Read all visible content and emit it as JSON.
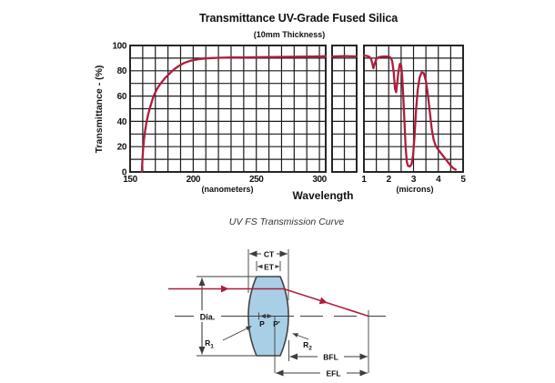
{
  "chart": {
    "title": "Transmittance UV-Grade Fused Silica",
    "subtitle": "(10mm Thickness)",
    "ylabel": "Transmittance - (%)",
    "xlabel": "Wavelength",
    "nm_axis_unit": "(nanometers)",
    "um_axis_unit": "(microns)"
  },
  "caption": "UV FS Transmission Curve",
  "lens": {
    "ct": "CT",
    "et": "ET",
    "dia": "Dia.",
    "p": "P",
    "p_prime": "P'",
    "r1": "R",
    "r1_sub": "1",
    "r2": "R",
    "r2_sub": "2",
    "bfl": "BFL",
    "efl": "EFL"
  },
  "colors": {
    "curve": "#AD1E3C",
    "ray": "#AD1E3C",
    "grid": "#1c1c1c",
    "diagram": "#3d3d3d",
    "lens_fill": "#A9CFE7",
    "lens_outline": "#444444",
    "text": "#111111"
  },
  "chart_data": {
    "type": "line",
    "title": "Transmittance UV-Grade Fused Silica",
    "subtitle": "(10mm Thickness)",
    "xlabel": "Wavelength",
    "ylabel": "Transmittance - (%)",
    "ylim": [
      0,
      100
    ],
    "y_ticks": [
      0,
      20,
      40,
      60,
      80,
      100
    ],
    "y_grid_step": 10,
    "grid": true,
    "legend": false,
    "panels": [
      {
        "id": "nm",
        "unit": "nanometers",
        "x_range": [
          150,
          305
        ],
        "grid_step": 10,
        "ticks": [
          150,
          200,
          250,
          300
        ],
        "points": [
          [
            159.3,
            0
          ],
          [
            159.8,
            10
          ],
          [
            160.3,
            18
          ],
          [
            161,
            26
          ],
          [
            162,
            33
          ],
          [
            163,
            39
          ],
          [
            164,
            44
          ],
          [
            165.5,
            50
          ],
          [
            167,
            55
          ],
          [
            168.6,
            60
          ],
          [
            170.5,
            64
          ],
          [
            172.5,
            67.5
          ],
          [
            175,
            71
          ],
          [
            177.5,
            74
          ],
          [
            180,
            76.5
          ],
          [
            183,
            79.5
          ],
          [
            186,
            82
          ],
          [
            189,
            84
          ],
          [
            192,
            85.8
          ],
          [
            195,
            87
          ],
          [
            198,
            88
          ],
          [
            202,
            88.8
          ],
          [
            206,
            89.4
          ],
          [
            210,
            89.8
          ],
          [
            215,
            90.1
          ],
          [
            220,
            90.3
          ],
          [
            230,
            90.5
          ],
          [
            240,
            90.6
          ],
          [
            250,
            90.7
          ],
          [
            265,
            90.9
          ],
          [
            280,
            91.1
          ],
          [
            295,
            91.3
          ],
          [
            305,
            91.5
          ]
        ]
      },
      {
        "id": "brk",
        "unit": "axis-break",
        "x_range": [
          0,
          2
        ],
        "grid_step": 1,
        "ticks": [],
        "points": [
          [
            0,
            91.2
          ],
          [
            1,
            91.6
          ],
          [
            2,
            91.4
          ]
        ]
      },
      {
        "id": "um",
        "unit": "microns",
        "x_range": [
          1,
          5
        ],
        "grid_step": 0.5,
        "ticks": [
          1,
          2,
          3,
          4,
          5
        ],
        "points": [
          [
            1.0,
            92
          ],
          [
            1.1,
            91.8
          ],
          [
            1.2,
            91.3
          ],
          [
            1.28,
            89.8
          ],
          [
            1.33,
            86.5
          ],
          [
            1.38,
            82
          ],
          [
            1.44,
            86
          ],
          [
            1.5,
            89.5
          ],
          [
            1.6,
            90.8
          ],
          [
            1.75,
            91.2
          ],
          [
            1.9,
            91.3
          ],
          [
            2.0,
            91.2
          ],
          [
            2.08,
            90.3
          ],
          [
            2.14,
            87.5
          ],
          [
            2.2,
            79
          ],
          [
            2.25,
            66
          ],
          [
            2.3,
            63
          ],
          [
            2.34,
            70
          ],
          [
            2.4,
            80
          ],
          [
            2.45,
            85.5
          ],
          [
            2.5,
            84.5
          ],
          [
            2.54,
            76
          ],
          [
            2.58,
            62
          ],
          [
            2.63,
            42
          ],
          [
            2.68,
            20
          ],
          [
            2.73,
            8
          ],
          [
            2.78,
            4.8
          ],
          [
            2.85,
            4.3
          ],
          [
            2.92,
            6
          ],
          [
            2.98,
            13
          ],
          [
            3.04,
            28
          ],
          [
            3.1,
            48
          ],
          [
            3.17,
            65
          ],
          [
            3.25,
            75
          ],
          [
            3.33,
            78.8
          ],
          [
            3.42,
            78
          ],
          [
            3.5,
            72
          ],
          [
            3.58,
            61
          ],
          [
            3.66,
            47
          ],
          [
            3.74,
            33
          ],
          [
            3.82,
            25
          ],
          [
            3.9,
            20.5
          ],
          [
            4.0,
            17.5
          ],
          [
            4.1,
            15
          ],
          [
            4.2,
            12.5
          ],
          [
            4.3,
            10
          ],
          [
            4.4,
            7.5
          ],
          [
            4.5,
            5
          ],
          [
            4.6,
            3
          ],
          [
            4.7,
            1.8
          ]
        ]
      }
    ]
  }
}
